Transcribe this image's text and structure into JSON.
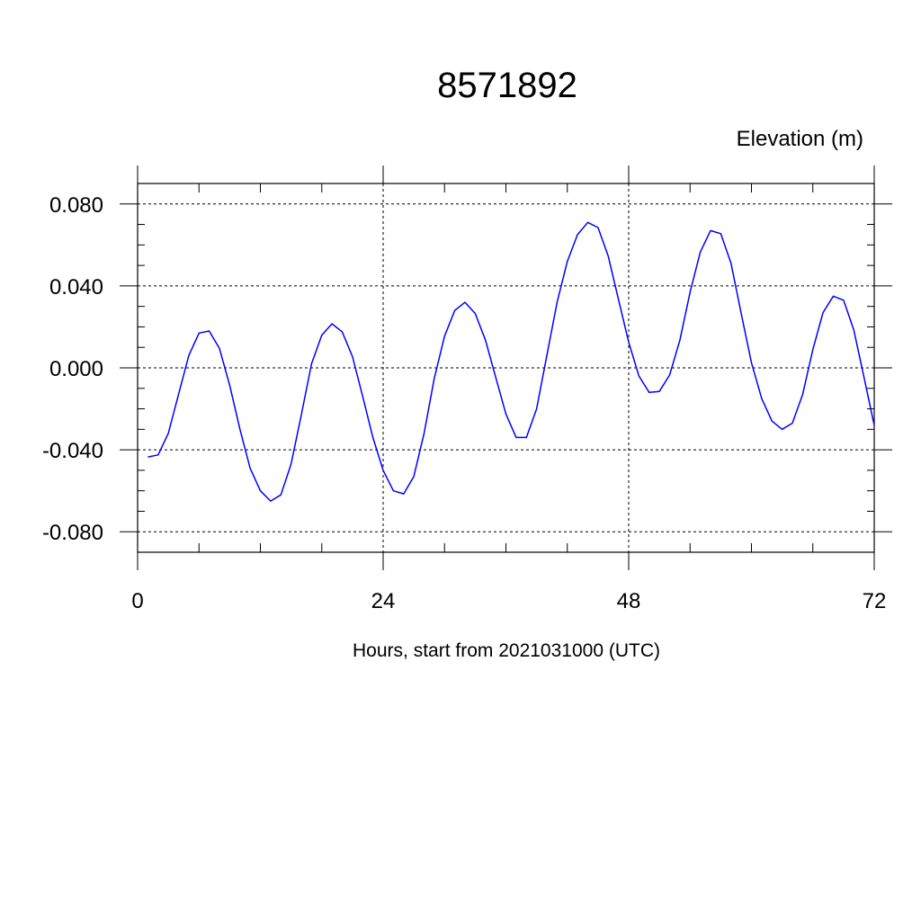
{
  "chart_data": {
    "type": "line",
    "title": "8571892",
    "subtitle": "Elevation (m)",
    "xlabel": "Hours, start from 2021031000 (UTC)",
    "ylabel": "",
    "xlim": [
      0,
      72
    ],
    "ylim": [
      -0.09,
      0.09
    ],
    "xticks": [
      0,
      24,
      48,
      72
    ],
    "xtick_labels": [
      "0",
      "24",
      "48",
      "72"
    ],
    "yticks": [
      -0.08,
      -0.04,
      0.0,
      0.04,
      0.08
    ],
    "ytick_labels": [
      "-0.080",
      "-0.040",
      "0.000",
      "0.040",
      "0.080"
    ],
    "grid": true,
    "series": [
      {
        "color": "#0000ff",
        "x": [
          1,
          2,
          3,
          4,
          5,
          6,
          7,
          8,
          9,
          10,
          11,
          12,
          13,
          14,
          15,
          16,
          17,
          18,
          19,
          20,
          21,
          22,
          23,
          24,
          25,
          26,
          27,
          28,
          29,
          30,
          31,
          32,
          33,
          34,
          35,
          36,
          37,
          38,
          39,
          40,
          41,
          42,
          43,
          44,
          45,
          46,
          47,
          48,
          49,
          50,
          51,
          52,
          53,
          54,
          55,
          56,
          57,
          58,
          59,
          60,
          61,
          62,
          63,
          64,
          65,
          66,
          67,
          68,
          69,
          70,
          71,
          72
        ],
        "values": [
          -0.0435,
          -0.0425,
          -0.032,
          -0.013,
          0.006,
          0.017,
          0.018,
          0.0095,
          -0.0085,
          -0.03,
          -0.049,
          -0.06,
          -0.065,
          -0.062,
          -0.047,
          -0.023,
          0.002,
          0.016,
          0.0215,
          0.0175,
          0.0055,
          -0.014,
          -0.034,
          -0.05,
          -0.06,
          -0.0615,
          -0.053,
          -0.032,
          -0.005,
          0.0155,
          0.028,
          0.032,
          0.0265,
          0.0135,
          -0.0045,
          -0.0225,
          -0.034,
          -0.034,
          -0.02,
          0.006,
          0.032,
          0.052,
          0.065,
          0.071,
          0.0685,
          0.0545,
          0.0335,
          0.0125,
          -0.004,
          -0.012,
          -0.0115,
          -0.0035,
          0.0135,
          0.037,
          0.0565,
          0.067,
          0.0655,
          0.051,
          0.0265,
          0.0025,
          -0.015,
          -0.026,
          -0.03,
          -0.027,
          -0.013,
          0.009,
          0.027,
          0.035,
          0.033,
          0.0185,
          -0.0045,
          -0.028
        ]
      }
    ]
  }
}
